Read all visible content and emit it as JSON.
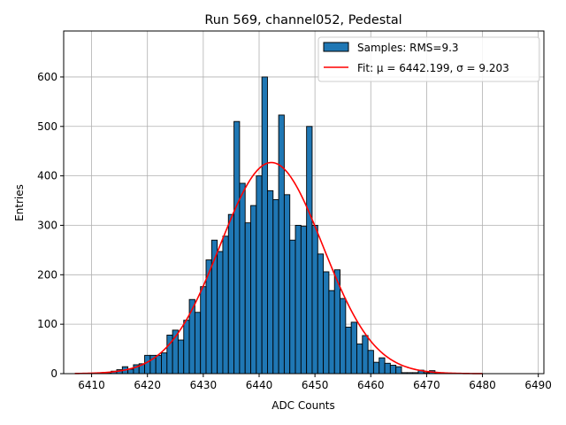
{
  "chart_data": {
    "type": "bar",
    "title": "Run 569, channel052, Pedestal",
    "xlabel": "ADC Counts",
    "ylabel": "Entries",
    "xlim": [
      6405,
      6491
    ],
    "ylim": [
      0,
      693
    ],
    "xticks": [
      6410,
      6420,
      6430,
      6440,
      6450,
      6460,
      6470,
      6480,
      6490
    ],
    "yticks": [
      0,
      100,
      200,
      300,
      400,
      500,
      600
    ],
    "grid": true,
    "legend_position": "top-right",
    "bin_width": 1,
    "colors": {
      "bars": "#1f77b4",
      "bar_edge": "#000000",
      "fit": "#ff0000",
      "grid": "#b0b0b0"
    },
    "series": [
      {
        "name": "Samples: RMS=9.3",
        "kind": "histogram",
        "bin_centers": [
          6413,
          6414,
          6415,
          6416,
          6417,
          6418,
          6419,
          6420,
          6421,
          6422,
          6423,
          6424,
          6425,
          6426,
          6427,
          6428,
          6429,
          6430,
          6431,
          6432,
          6433,
          6434,
          6435,
          6436,
          6437,
          6438,
          6439,
          6440,
          6441,
          6442,
          6443,
          6444,
          6445,
          6446,
          6447,
          6448,
          6449,
          6450,
          6451,
          6452,
          6453,
          6454,
          6455,
          6456,
          6457,
          6458,
          6459,
          6460,
          6461,
          6462,
          6463,
          6464,
          6465,
          6466,
          6467,
          6468,
          6469,
          6470,
          6471,
          6472
        ],
        "values": [
          2,
          5,
          8,
          14,
          9,
          18,
          20,
          37,
          37,
          37,
          42,
          78,
          88,
          68,
          108,
          150,
          124,
          176,
          230,
          270,
          247,
          278,
          322,
          510,
          385,
          305,
          340,
          400,
          600,
          370,
          352,
          523,
          362,
          270,
          300,
          298,
          500,
          300,
          242,
          206,
          168,
          210,
          152,
          94,
          104,
          60,
          77,
          47,
          23,
          32,
          21,
          17,
          14,
          2,
          2,
          2,
          7,
          2,
          6,
          1
        ]
      },
      {
        "name": "Fit: μ = 6442.199, σ = 9.203",
        "kind": "gaussian-fit",
        "mu": 6442.199,
        "sigma": 9.203,
        "amplitude": 427,
        "x_range": [
          6407,
          6480
        ]
      }
    ]
  }
}
